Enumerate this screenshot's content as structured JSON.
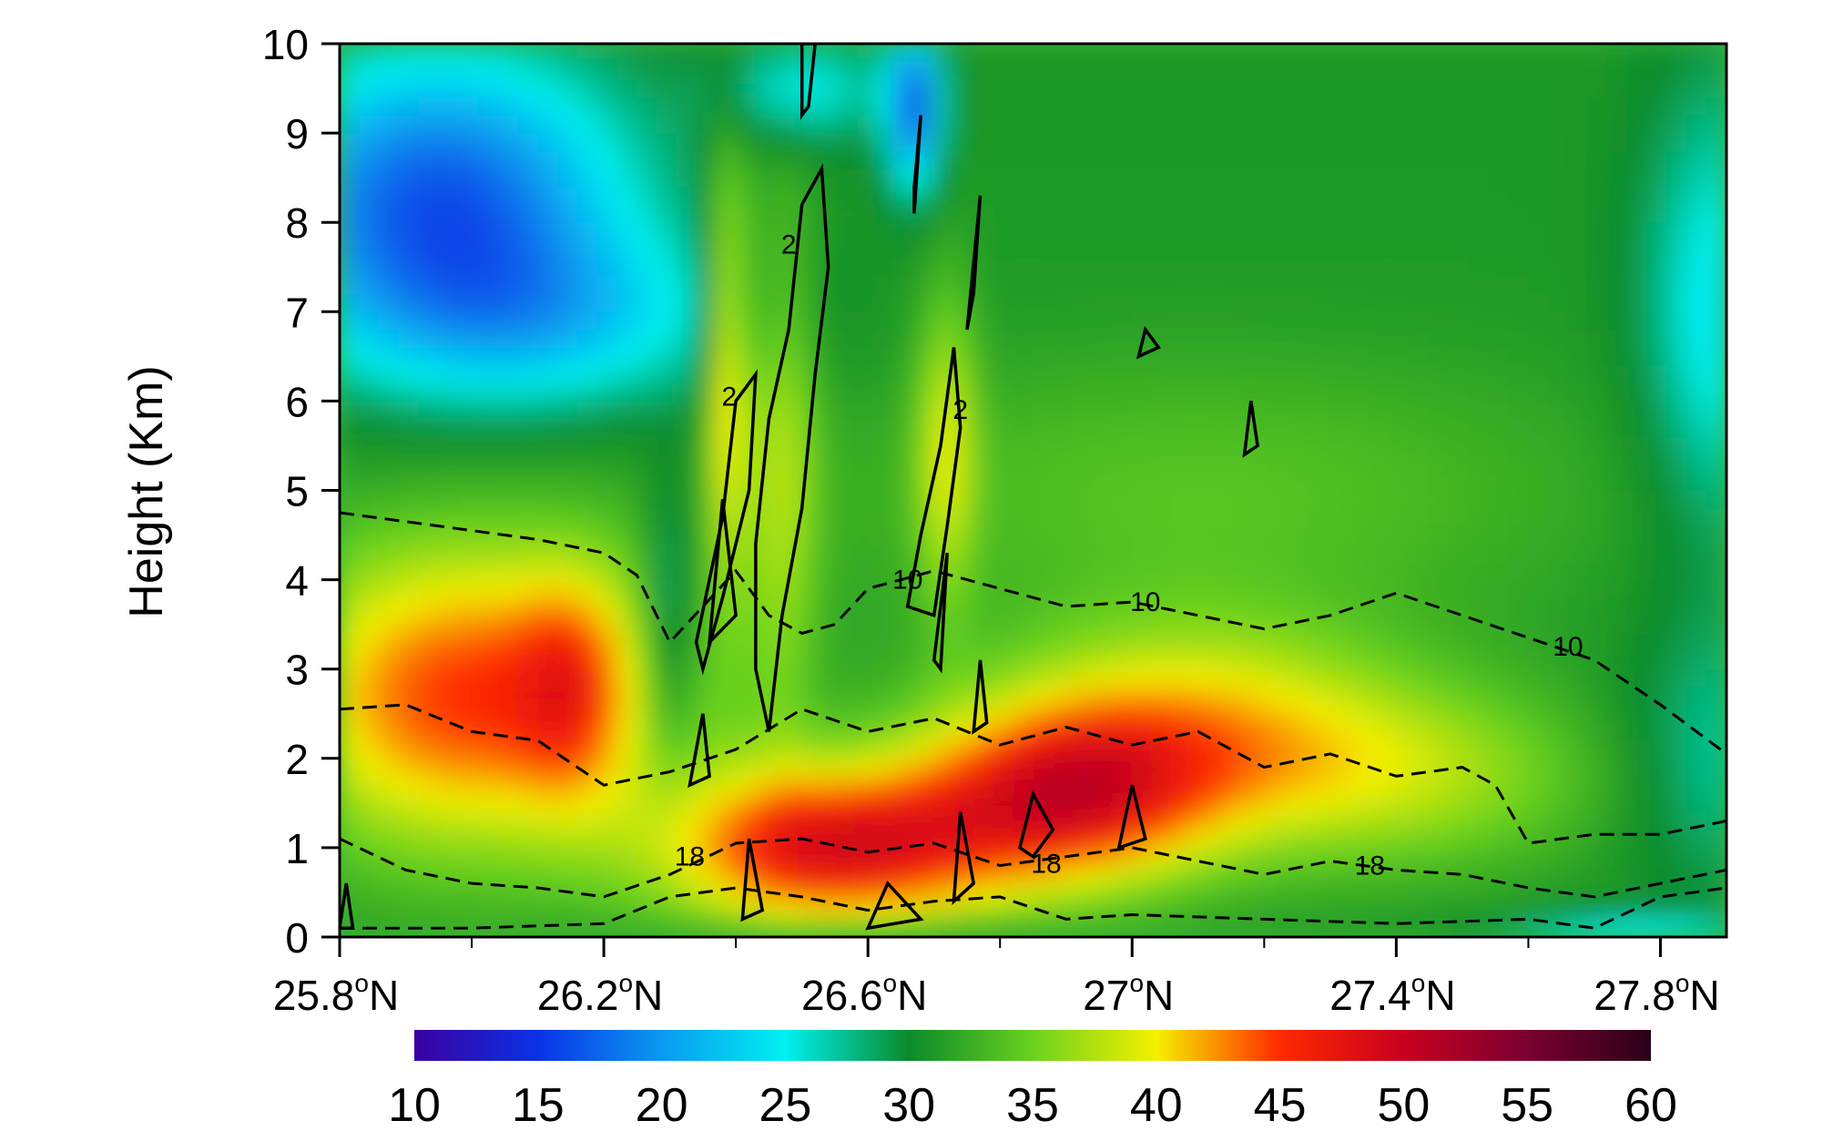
{
  "chart_data": {
    "type": "heatmap",
    "title": "",
    "xlabel": "",
    "ylabel": "Height (Km)",
    "xlim": [
      25.8,
      27.9
    ],
    "ylim": [
      0,
      10
    ],
    "x_ticks": [
      {
        "value": 25.8,
        "label": "25.8",
        "unit": "o",
        "hemi": "N"
      },
      {
        "value": 26.2,
        "label": "26.2",
        "unit": "o",
        "hemi": "N"
      },
      {
        "value": 26.6,
        "label": "26.6",
        "unit": "o",
        "hemi": "N"
      },
      {
        "value": 27.0,
        "label": "27",
        "unit": "o",
        "hemi": "N"
      },
      {
        "value": 27.4,
        "label": "27.4",
        "unit": "o",
        "hemi": "N"
      },
      {
        "value": 27.8,
        "label": "27.8",
        "unit": "o",
        "hemi": "N"
      }
    ],
    "y_ticks": [
      0,
      1,
      2,
      3,
      4,
      5,
      6,
      7,
      8,
      9,
      10
    ],
    "colorbar": {
      "ticks": [
        10,
        15,
        20,
        25,
        30,
        35,
        40,
        45,
        50,
        55,
        60
      ],
      "stops": [
        {
          "value": 10,
          "color": "#3a00a0"
        },
        {
          "value": 15,
          "color": "#0a32e6"
        },
        {
          "value": 20,
          "color": "#0a9af0"
        },
        {
          "value": 25,
          "color": "#00f0f0"
        },
        {
          "value": 30,
          "color": "#0a8a2a"
        },
        {
          "value": 35,
          "color": "#6ad21e"
        },
        {
          "value": 40,
          "color": "#f5f000"
        },
        {
          "value": 45,
          "color": "#ff2a00"
        },
        {
          "value": 50,
          "color": "#c8001e"
        },
        {
          "value": 55,
          "color": "#7a0030"
        },
        {
          "value": 60,
          "color": "#2a0018"
        }
      ]
    },
    "dashed_contours": [
      {
        "level_label": "10",
        "points": [
          [
            25.8,
            4.75
          ],
          [
            25.9,
            4.65
          ],
          [
            26.0,
            4.55
          ],
          [
            26.1,
            4.45
          ],
          [
            26.2,
            4.3
          ],
          [
            26.25,
            4.05
          ],
          [
            26.3,
            3.3
          ],
          [
            26.35,
            3.7
          ],
          [
            26.4,
            4.1
          ],
          [
            26.45,
            3.6
          ],
          [
            26.5,
            3.4
          ],
          [
            26.55,
            3.5
          ],
          [
            26.6,
            3.9
          ],
          [
            26.7,
            4.1
          ],
          [
            26.8,
            3.9
          ],
          [
            26.9,
            3.7
          ],
          [
            27.0,
            3.75
          ],
          [
            27.1,
            3.6
          ],
          [
            27.2,
            3.45
          ],
          [
            27.3,
            3.6
          ],
          [
            27.4,
            3.85
          ],
          [
            27.5,
            3.6
          ],
          [
            27.6,
            3.35
          ],
          [
            27.7,
            3.1
          ],
          [
            27.8,
            2.6
          ],
          [
            27.9,
            2.05
          ]
        ],
        "labels": [
          {
            "x": 26.66,
            "y": 4.0,
            "text": "10"
          },
          {
            "x": 27.02,
            "y": 3.75,
            "text": "10"
          },
          {
            "x": 27.66,
            "y": 3.25,
            "text": "10"
          }
        ]
      },
      {
        "level_label": "",
        "points": [
          [
            25.8,
            2.55
          ],
          [
            25.9,
            2.6
          ],
          [
            26.0,
            2.3
          ],
          [
            26.1,
            2.2
          ],
          [
            26.15,
            1.95
          ],
          [
            26.2,
            1.7
          ],
          [
            26.3,
            1.85
          ],
          [
            26.4,
            2.1
          ],
          [
            26.5,
            2.55
          ],
          [
            26.6,
            2.3
          ],
          [
            26.7,
            2.45
          ],
          [
            26.8,
            2.15
          ],
          [
            26.9,
            2.35
          ],
          [
            27.0,
            2.15
          ],
          [
            27.1,
            2.3
          ],
          [
            27.2,
            1.9
          ],
          [
            27.3,
            2.05
          ],
          [
            27.4,
            1.8
          ],
          [
            27.5,
            1.9
          ],
          [
            27.55,
            1.7
          ],
          [
            27.6,
            1.05
          ],
          [
            27.7,
            1.15
          ],
          [
            27.8,
            1.15
          ],
          [
            27.9,
            1.3
          ]
        ],
        "labels": []
      },
      {
        "level_label": "18",
        "points": [
          [
            25.8,
            1.1
          ],
          [
            25.9,
            0.75
          ],
          [
            26.0,
            0.6
          ],
          [
            26.1,
            0.55
          ],
          [
            26.2,
            0.45
          ],
          [
            26.3,
            0.7
          ],
          [
            26.4,
            1.05
          ],
          [
            26.5,
            1.1
          ],
          [
            26.6,
            0.95
          ],
          [
            26.7,
            1.05
          ],
          [
            26.8,
            0.8
          ],
          [
            26.9,
            0.9
          ],
          [
            27.0,
            1.0
          ],
          [
            27.1,
            0.85
          ],
          [
            27.2,
            0.7
          ],
          [
            27.3,
            0.85
          ],
          [
            27.4,
            0.75
          ],
          [
            27.5,
            0.7
          ],
          [
            27.6,
            0.55
          ],
          [
            27.7,
            0.45
          ],
          [
            27.8,
            0.6
          ],
          [
            27.9,
            0.75
          ]
        ],
        "labels": [
          {
            "x": 26.33,
            "y": 0.9,
            "text": "18"
          },
          {
            "x": 26.87,
            "y": 0.82,
            "text": "18"
          },
          {
            "x": 27.36,
            "y": 0.8,
            "text": "18"
          }
        ]
      },
      {
        "level_label": "",
        "points": [
          [
            25.8,
            0.1
          ],
          [
            26.0,
            0.1
          ],
          [
            26.2,
            0.15
          ],
          [
            26.3,
            0.45
          ],
          [
            26.4,
            0.55
          ],
          [
            26.5,
            0.45
          ],
          [
            26.6,
            0.3
          ],
          [
            26.7,
            0.4
          ],
          [
            26.8,
            0.45
          ],
          [
            26.9,
            0.2
          ],
          [
            27.0,
            0.25
          ],
          [
            27.2,
            0.2
          ],
          [
            27.4,
            0.15
          ],
          [
            27.6,
            0.2
          ],
          [
            27.7,
            0.1
          ],
          [
            27.8,
            0.45
          ],
          [
            27.9,
            0.55
          ]
        ],
        "labels": []
      }
    ],
    "solid_contours": [
      {
        "label": "2",
        "points": [
          [
            26.35,
            3.0
          ],
          [
            26.38,
            3.8
          ],
          [
            26.42,
            5.0
          ],
          [
            26.43,
            6.3
          ],
          [
            26.4,
            6.0
          ],
          [
            26.38,
            4.7
          ],
          [
            26.34,
            3.3
          ]
        ],
        "labels": [
          {
            "x": 26.39,
            "y": 6.05,
            "text": "2"
          }
        ]
      },
      {
        "label": "2",
        "points": [
          [
            26.45,
            2.3
          ],
          [
            26.47,
            3.6
          ],
          [
            26.5,
            4.8
          ],
          [
            26.52,
            6.3
          ],
          [
            26.54,
            7.5
          ],
          [
            26.53,
            8.6
          ],
          [
            26.5,
            8.2
          ],
          [
            26.48,
            6.8
          ],
          [
            26.45,
            5.8
          ],
          [
            26.43,
            4.4
          ],
          [
            26.43,
            3.0
          ]
        ],
        "labels": [
          {
            "x": 26.48,
            "y": 7.75,
            "text": "2"
          }
        ]
      },
      {
        "label": "",
        "points": [
          [
            26.51,
            9.3
          ],
          [
            26.52,
            10.0
          ],
          [
            26.5,
            10.0
          ],
          [
            26.5,
            9.2
          ]
        ],
        "labels": []
      },
      {
        "label": "2",
        "points": [
          [
            26.66,
            3.7
          ],
          [
            26.68,
            4.5
          ],
          [
            26.71,
            5.5
          ],
          [
            26.73,
            6.6
          ],
          [
            26.74,
            5.7
          ],
          [
            26.72,
            4.6
          ],
          [
            26.7,
            3.6
          ]
        ],
        "labels": [
          {
            "x": 26.74,
            "y": 5.9,
            "text": "2"
          }
        ]
      },
      {
        "label": "",
        "points": [
          [
            26.75,
            6.8
          ],
          [
            26.77,
            8.3
          ],
          [
            26.76,
            7.2
          ]
        ],
        "labels": []
      },
      {
        "label": "",
        "points": [
          [
            26.67,
            8.1
          ],
          [
            26.68,
            9.2
          ],
          [
            26.67,
            8.4
          ]
        ],
        "labels": []
      },
      {
        "label": "",
        "points": [
          [
            26.33,
            1.7
          ],
          [
            26.35,
            2.5
          ],
          [
            26.36,
            1.8
          ]
        ],
        "labels": []
      },
      {
        "label": "",
        "points": [
          [
            26.36,
            3.3
          ],
          [
            26.38,
            4.9
          ],
          [
            26.4,
            3.6
          ]
        ],
        "labels": []
      },
      {
        "label": "",
        "points": [
          [
            26.7,
            3.1
          ],
          [
            26.72,
            4.3
          ],
          [
            26.71,
            3.0
          ]
        ],
        "labels": []
      },
      {
        "label": "",
        "points": [
          [
            26.76,
            2.3
          ],
          [
            26.77,
            3.1
          ],
          [
            26.78,
            2.4
          ]
        ],
        "labels": []
      },
      {
        "label": "",
        "points": [
          [
            26.83,
            1.0
          ],
          [
            26.85,
            1.6
          ],
          [
            26.88,
            1.2
          ],
          [
            26.85,
            0.9
          ]
        ],
        "labels": []
      },
      {
        "label": "",
        "points": [
          [
            26.98,
            1.0
          ],
          [
            27.0,
            1.7
          ],
          [
            27.02,
            1.1
          ]
        ],
        "labels": []
      },
      {
        "label": "",
        "points": [
          [
            26.41,
            0.2
          ],
          [
            26.42,
            1.1
          ],
          [
            26.44,
            0.3
          ]
        ],
        "labels": []
      },
      {
        "label": "",
        "points": [
          [
            26.6,
            0.1
          ],
          [
            26.63,
            0.6
          ],
          [
            26.68,
            0.2
          ]
        ],
        "labels": []
      },
      {
        "label": "",
        "points": [
          [
            26.73,
            0.4
          ],
          [
            26.74,
            1.4
          ],
          [
            26.76,
            0.6
          ]
        ],
        "labels": []
      },
      {
        "label": "",
        "points": [
          [
            25.8,
            0.1
          ],
          [
            25.81,
            0.6
          ],
          [
            25.82,
            0.1
          ]
        ],
        "labels": []
      },
      {
        "label": "",
        "points": [
          [
            27.01,
            6.5
          ],
          [
            27.02,
            6.8
          ],
          [
            27.04,
            6.6
          ]
        ],
        "labels": []
      },
      {
        "label": "",
        "points": [
          [
            27.17,
            5.4
          ],
          [
            27.18,
            6.0
          ],
          [
            27.19,
            5.5
          ]
        ],
        "labels": []
      }
    ]
  }
}
